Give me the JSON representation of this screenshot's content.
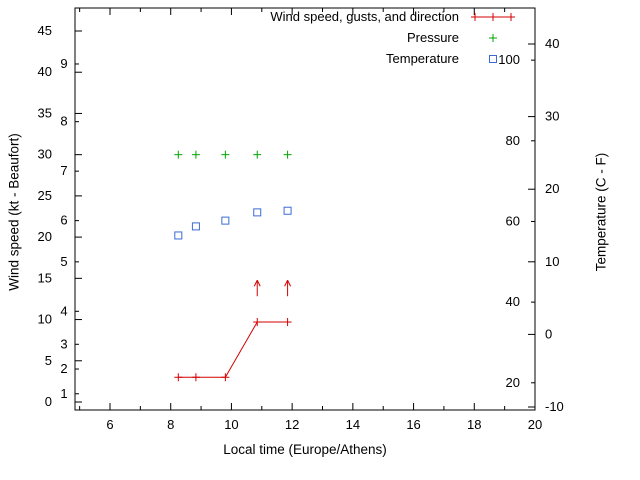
{
  "page": {
    "background": "#ffffff"
  },
  "chart_data": {
    "type": "line",
    "title": "",
    "xlabel": "Local time (Europe/Athens)",
    "ylabel_left": "Wind speed (kt - Beaufort)",
    "ylabel_right": "Temperature (C - F)",
    "legend_position": "top-right-inside",
    "grid": false,
    "x_axis": {
      "range_shown": [
        4.8,
        20
      ],
      "major_ticks": [
        6,
        8,
        10,
        12,
        14,
        16,
        18,
        20
      ],
      "minor_ticks": [
        5,
        7,
        9,
        11,
        13,
        15,
        17,
        19
      ]
    },
    "left_axis": {
      "units": "kt",
      "ticks": [
        0,
        5,
        10,
        15,
        20,
        25,
        30,
        35,
        40,
        45
      ],
      "inner_scale": {
        "units": "Beaufort",
        "labels": [
          "1",
          "2",
          "3",
          "4",
          "5",
          "6",
          "7",
          "8",
          "9"
        ],
        "positions_kt": [
          1,
          4,
          7,
          11,
          17,
          22,
          28,
          34,
          41
        ]
      }
    },
    "right_axis": {
      "units": "C",
      "ticks_c": [
        -10,
        0,
        10,
        20,
        30,
        40
      ],
      "inner_scale": {
        "units": "F",
        "labels": [
          20,
          40,
          60,
          80,
          100
        ]
      }
    },
    "series": [
      {
        "id": "wind",
        "name": "Wind speed, gusts, and direction",
        "color": "#d40000",
        "marker": "plus",
        "line": true,
        "units": "kt",
        "points": [
          {
            "x": 8.25,
            "y": 3
          },
          {
            "x": 8.83,
            "y": 3
          },
          {
            "x": 9.8,
            "y": 3
          },
          {
            "x": 10.85,
            "y": 9.7
          },
          {
            "x": 11.85,
            "y": 9.7
          }
        ],
        "direction_arrows": [
          {
            "x": 10.85,
            "y": 13.8,
            "pointing": "up"
          },
          {
            "x": 11.85,
            "y": 13.8,
            "pointing": "up"
          }
        ]
      },
      {
        "id": "pressure",
        "name": "Pressure",
        "color": "#00a400",
        "marker": "plus",
        "line": false,
        "units": "left-axis position (no pressure scale labeled)",
        "points": [
          {
            "x": 8.25,
            "y": 30
          },
          {
            "x": 8.83,
            "y": 30
          },
          {
            "x": 9.8,
            "y": 30
          },
          {
            "x": 10.85,
            "y": 30
          },
          {
            "x": 11.85,
            "y": 30
          }
        ]
      },
      {
        "id": "temperature",
        "name": "Temperature",
        "color": "#3b6bd6",
        "marker": "square-open",
        "line": false,
        "units": "left-axis position",
        "approx_values_c": [
          13.5,
          14.9,
          15.7,
          16.8,
          17.0
        ],
        "points": [
          {
            "x": 8.25,
            "y": 20.2
          },
          {
            "x": 8.83,
            "y": 21.3
          },
          {
            "x": 9.8,
            "y": 22.0
          },
          {
            "x": 10.85,
            "y": 23.0
          },
          {
            "x": 11.85,
            "y": 23.2
          }
        ]
      }
    ]
  }
}
